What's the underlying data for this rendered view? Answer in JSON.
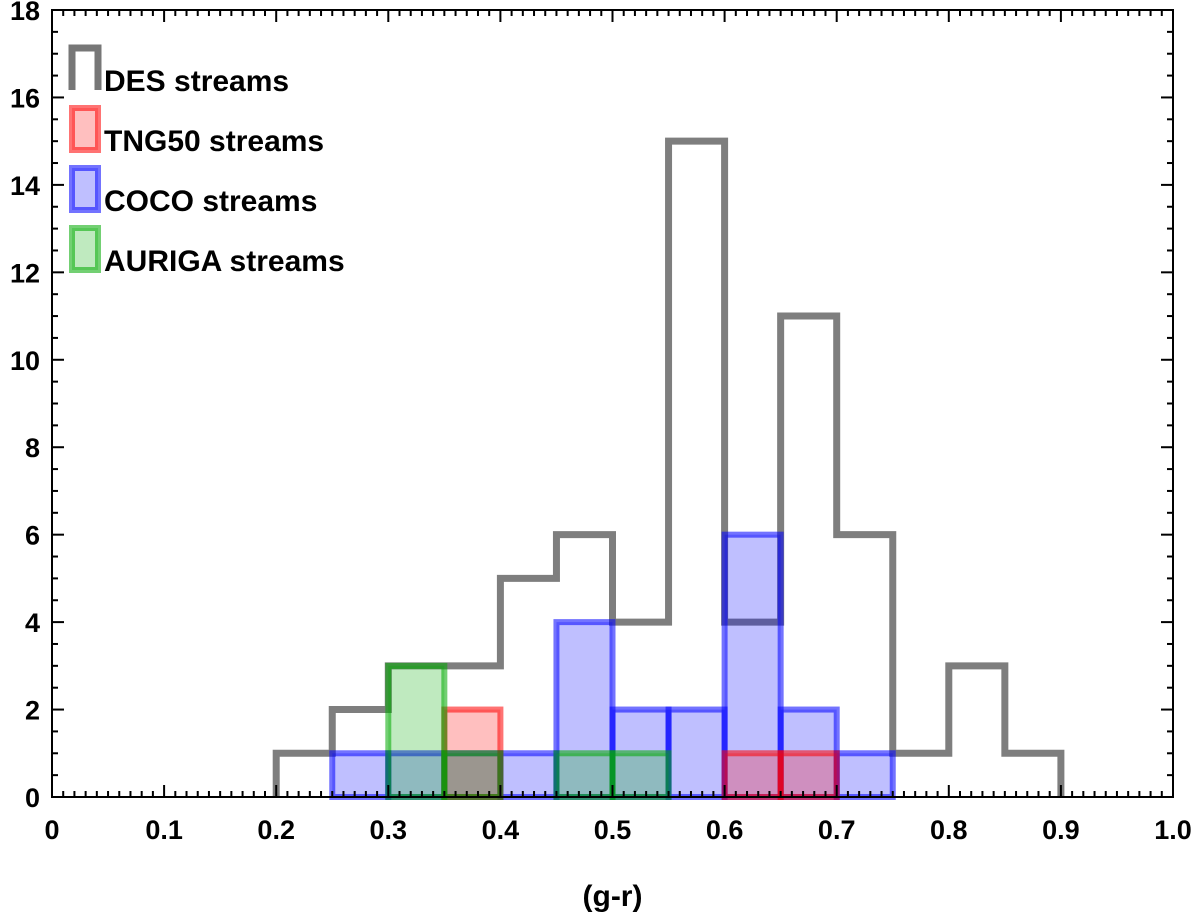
{
  "chart_data": {
    "type": "histogram",
    "title": "",
    "xlabel": "(g-r)",
    "ylabel": "",
    "xlim": [
      0,
      1.0
    ],
    "ylim": [
      0,
      18
    ],
    "xticks": [
      "0",
      "0.1",
      "0.2",
      "0.3",
      "0.4",
      "0.5",
      "0.6",
      "0.7",
      "0.8",
      "0.9",
      "1.0"
    ],
    "yticks": [
      "0",
      "2",
      "4",
      "6",
      "8",
      "10",
      "12",
      "14",
      "16",
      "18"
    ],
    "bin_width": 0.05,
    "series": [
      {
        "name": "DES streams",
        "style": "step",
        "color": "#777777",
        "bins": [
          {
            "start": 0.2,
            "count": 1
          },
          {
            "start": 0.25,
            "count": 2
          },
          {
            "start": 0.3,
            "count": 3
          },
          {
            "start": 0.35,
            "count": 3
          },
          {
            "start": 0.4,
            "count": 5
          },
          {
            "start": 0.45,
            "count": 6
          },
          {
            "start": 0.5,
            "count": 4
          },
          {
            "start": 0.55,
            "count": 15
          },
          {
            "start": 0.6,
            "count": 4
          },
          {
            "start": 0.65,
            "count": 11
          },
          {
            "start": 0.7,
            "count": 6
          },
          {
            "start": 0.75,
            "count": 1
          },
          {
            "start": 0.8,
            "count": 3
          },
          {
            "start": 0.85,
            "count": 1
          }
        ]
      },
      {
        "name": "TNG50 streams",
        "style": "filled",
        "color": "#ff0000",
        "bins": [
          {
            "start": 0.35,
            "count": 2
          },
          {
            "start": 0.6,
            "count": 1
          },
          {
            "start": 0.65,
            "count": 1
          }
        ]
      },
      {
        "name": "COCO streams",
        "style": "filled",
        "color": "#0000ff",
        "bins": [
          {
            "start": 0.25,
            "count": 1
          },
          {
            "start": 0.3,
            "count": 1
          },
          {
            "start": 0.35,
            "count": 1
          },
          {
            "start": 0.4,
            "count": 1
          },
          {
            "start": 0.45,
            "count": 4
          },
          {
            "start": 0.5,
            "count": 2
          },
          {
            "start": 0.55,
            "count": 2
          },
          {
            "start": 0.6,
            "count": 6
          },
          {
            "start": 0.65,
            "count": 2
          },
          {
            "start": 0.7,
            "count": 1
          }
        ]
      },
      {
        "name": "AURIGA streams",
        "style": "filled",
        "color": "#00aa00",
        "bins": [
          {
            "start": 0.3,
            "count": 3
          },
          {
            "start": 0.35,
            "count": 1
          },
          {
            "start": 0.45,
            "count": 1
          },
          {
            "start": 0.5,
            "count": 1
          }
        ]
      }
    ],
    "legend": {
      "position": "top-left",
      "entries": [
        "DES streams",
        "TNG50 streams",
        "COCO streams",
        "AURIGA streams"
      ]
    }
  }
}
